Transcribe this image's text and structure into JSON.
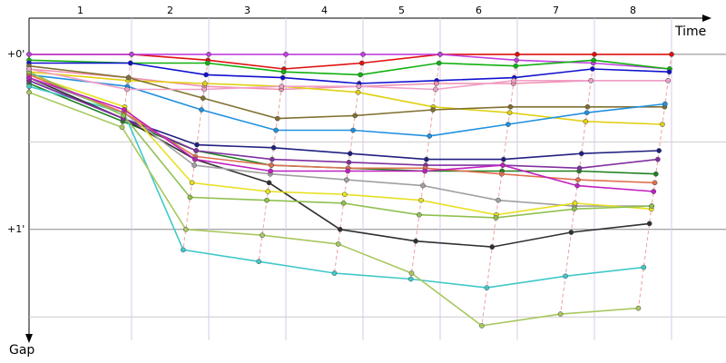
{
  "chart_data": {
    "type": "line",
    "x_label": "Time",
    "y_label": "Gap",
    "categories": [
      null,
      "1",
      "2",
      "3",
      "4",
      "5",
      "6",
      "7",
      "8"
    ],
    "ylim": [
      -12.4,
      98
    ],
    "yticks": [
      {
        "value": 0,
        "label": "+0'"
      },
      {
        "value": 60,
        "label": "+1'"
      }
    ],
    "minor_gridlines": [
      30,
      90
    ],
    "grid": true,
    "series": [
      {
        "name": "Red",
        "color": "#e01010",
        "values": [
          0,
          0,
          2,
          5,
          3,
          0,
          0,
          0,
          0
        ]
      },
      {
        "name": "Violet",
        "color": "#c040e0",
        "values": [
          0,
          0,
          0,
          0,
          0,
          0,
          2,
          3,
          5
        ]
      },
      {
        "name": "Green",
        "color": "#10b010",
        "values": [
          2,
          3,
          3,
          6,
          7,
          3,
          4,
          2,
          5
        ]
      },
      {
        "name": "Blue",
        "color": "#1010d0",
        "values": [
          3,
          3,
          7,
          8,
          10,
          9,
          8,
          5,
          6
        ]
      },
      {
        "name": "Pink",
        "color": "#f090b0",
        "values": [
          5,
          8,
          11,
          12,
          11,
          10,
          10,
          9,
          9
        ]
      },
      {
        "name": "Yellow",
        "color": "#e0d010",
        "values": [
          6,
          9,
          10,
          11,
          13,
          18,
          20,
          23,
          24
        ]
      },
      {
        "name": "Olive",
        "color": "#807030",
        "values": [
          4,
          8,
          15,
          22,
          21,
          19,
          18,
          18,
          18
        ]
      },
      {
        "name": "Sky",
        "color": "#2090e0",
        "values": [
          7,
          11,
          19,
          26,
          26,
          28,
          24,
          20,
          17
        ]
      },
      {
        "name": "Navy",
        "color": "#202080",
        "values": [
          9,
          22,
          31,
          32,
          34,
          36,
          36,
          34,
          33
        ]
      },
      {
        "name": "Dark green",
        "color": "#208020",
        "values": [
          10,
          23,
          33,
          38,
          39,
          40,
          40,
          40,
          41
        ]
      },
      {
        "name": "Cyan",
        "color": "#40c8c8",
        "values": [
          11,
          20,
          67,
          71,
          75,
          77,
          80,
          76,
          73
        ]
      },
      {
        "name": "Lime",
        "color": "#a8c860",
        "values": [
          13,
          25,
          60,
          62,
          65,
          75,
          93,
          89,
          87
        ]
      },
      {
        "name": "Black",
        "color": "#303030",
        "values": [
          8,
          22,
          36,
          44,
          60,
          64,
          66,
          61,
          58
        ]
      },
      {
        "name": "Purple",
        "color": "#8030a0",
        "values": [
          9,
          22,
          33,
          36,
          37,
          38,
          38,
          39,
          36
        ]
      },
      {
        "name": "Gray",
        "color": "#a0a0a0",
        "values": [
          8,
          20,
          38,
          41,
          43,
          45,
          50,
          52,
          52
        ]
      },
      {
        "name": "Bright yellow",
        "color": "#e8e020",
        "values": [
          7,
          18,
          44,
          47,
          48,
          50,
          55,
          51,
          53
        ]
      },
      {
        "name": "Salmon",
        "color": "#e07050",
        "values": [
          7,
          20,
          35,
          38,
          39,
          39,
          41,
          43,
          44
        ]
      },
      {
        "name": "Light green",
        "color": "#90c050",
        "values": [
          6,
          21,
          49,
          50,
          51,
          55,
          56,
          53,
          52
        ]
      },
      {
        "name": "Hot pink",
        "color": "#f0a0c8",
        "values": [
          5,
          12,
          12,
          11,
          11,
          12,
          9,
          9,
          9
        ]
      },
      {
        "name": "Magenta",
        "color": "#c020c0",
        "values": [
          8,
          19,
          36,
          40,
          40,
          40,
          38,
          45,
          47
        ]
      }
    ]
  }
}
